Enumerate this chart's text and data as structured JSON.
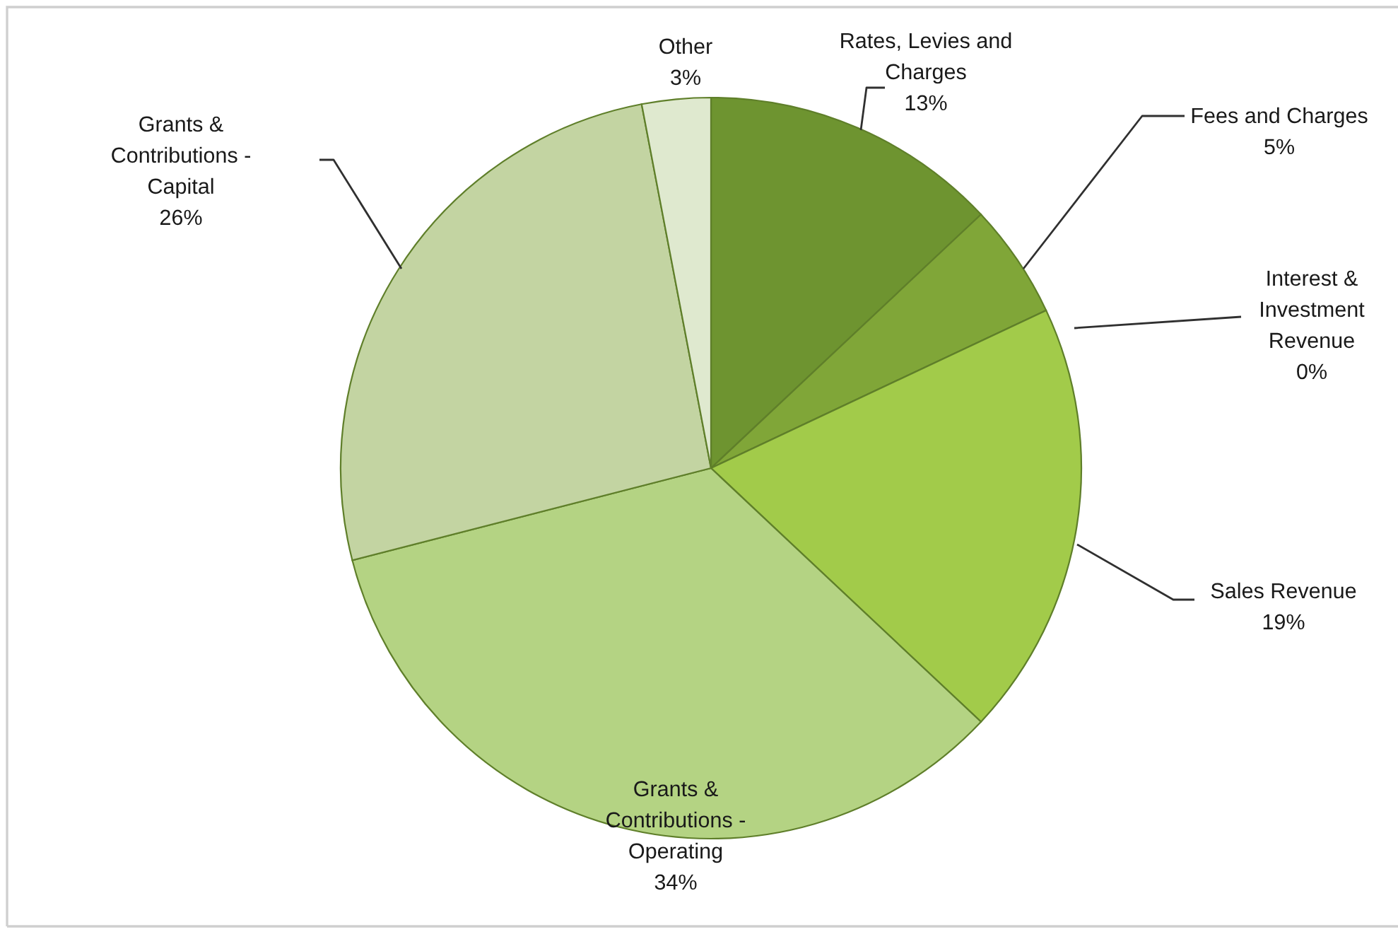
{
  "chart_data": {
    "type": "pie",
    "categories": [
      "Rates, Levies and\nCharges",
      "Fees and Charges",
      "Interest &\nInvestment\nRevenue",
      "Sales Revenue",
      "Grants &\nContributions -\nOperating",
      "Grants &\nContributions -\nCapital",
      "Other"
    ],
    "values": [
      13,
      5,
      0,
      19,
      34,
      26,
      3
    ],
    "value_labels": [
      "13%",
      "5%",
      "0%",
      "19%",
      "34%",
      "26%",
      "3%"
    ],
    "colors": [
      "#6e9430",
      "#80a638",
      "#8fb83c",
      "#a2cb4a",
      "#b4d383",
      "#c3d4a2",
      "#dfe9cf"
    ]
  }
}
